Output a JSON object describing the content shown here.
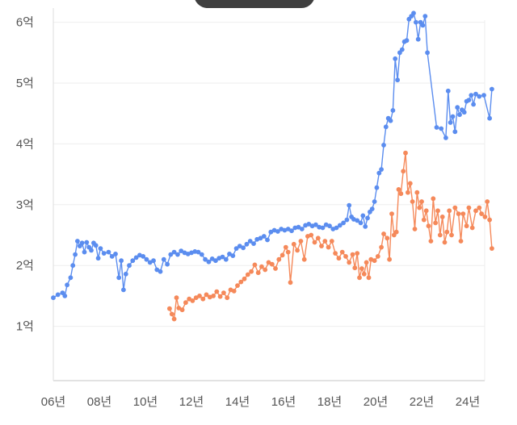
{
  "chart_data": {
    "type": "line",
    "title": "",
    "xlabel": "",
    "ylabel": "",
    "x_unit": "year",
    "xlim": [
      2006,
      2025.4
    ],
    "ylim": [
      0,
      6.3
    ],
    "y_ticks": [
      {
        "value": 1,
        "label": "1억"
      },
      {
        "value": 2,
        "label": "2억"
      },
      {
        "value": 3,
        "label": "3억"
      },
      {
        "value": 4,
        "label": "4억"
      },
      {
        "value": 5,
        "label": "5억"
      },
      {
        "value": 6,
        "label": "6억"
      }
    ],
    "x_ticks": [
      {
        "value": 2006,
        "label": "06년"
      },
      {
        "value": 2008,
        "label": "08년"
      },
      {
        "value": 2010,
        "label": "10년"
      },
      {
        "value": 2012,
        "label": "12년"
      },
      {
        "value": 2014,
        "label": "14년"
      },
      {
        "value": 2016,
        "label": "16년"
      },
      {
        "value": 2018,
        "label": "18년"
      },
      {
        "value": 2020,
        "label": "20년"
      },
      {
        "value": 2022,
        "label": "22년"
      },
      {
        "value": 2024,
        "label": "24년"
      }
    ],
    "grid": true,
    "legend": "none",
    "series": [
      {
        "color": "#5b8def",
        "points": [
          [
            2006.0,
            1.47
          ],
          [
            2006.2,
            1.52
          ],
          [
            2006.4,
            1.55
          ],
          [
            2006.5,
            1.5
          ],
          [
            2006.6,
            1.68
          ],
          [
            2006.75,
            1.8
          ],
          [
            2006.85,
            2.0
          ],
          [
            2006.95,
            2.18
          ],
          [
            2007.05,
            2.4
          ],
          [
            2007.15,
            2.32
          ],
          [
            2007.25,
            2.37
          ],
          [
            2007.35,
            2.22
          ],
          [
            2007.45,
            2.38
          ],
          [
            2007.55,
            2.3
          ],
          [
            2007.65,
            2.25
          ],
          [
            2007.75,
            2.37
          ],
          [
            2007.85,
            2.33
          ],
          [
            2007.95,
            2.12
          ],
          [
            2008.05,
            2.28
          ],
          [
            2008.2,
            2.2
          ],
          [
            2008.4,
            2.22
          ],
          [
            2008.55,
            2.15
          ],
          [
            2008.7,
            2.19
          ],
          [
            2008.85,
            1.8
          ],
          [
            2008.95,
            2.08
          ],
          [
            2009.05,
            1.6
          ],
          [
            2009.15,
            1.86
          ],
          [
            2009.3,
            2.0
          ],
          [
            2009.45,
            2.08
          ],
          [
            2009.6,
            2.13
          ],
          [
            2009.75,
            2.17
          ],
          [
            2009.9,
            2.15
          ],
          [
            2010.05,
            2.1
          ],
          [
            2010.2,
            2.05
          ],
          [
            2010.35,
            2.08
          ],
          [
            2010.5,
            1.93
          ],
          [
            2010.65,
            1.9
          ],
          [
            2010.8,
            2.1
          ],
          [
            2010.95,
            2.02
          ],
          [
            2011.1,
            2.18
          ],
          [
            2011.25,
            2.22
          ],
          [
            2011.4,
            2.18
          ],
          [
            2011.55,
            2.24
          ],
          [
            2011.7,
            2.21
          ],
          [
            2011.85,
            2.19
          ],
          [
            2012.0,
            2.21
          ],
          [
            2012.15,
            2.23
          ],
          [
            2012.3,
            2.22
          ],
          [
            2012.45,
            2.18
          ],
          [
            2012.6,
            2.1
          ],
          [
            2012.75,
            2.06
          ],
          [
            2012.9,
            2.11
          ],
          [
            2013.05,
            2.08
          ],
          [
            2013.2,
            2.12
          ],
          [
            2013.35,
            2.14
          ],
          [
            2013.5,
            2.1
          ],
          [
            2013.65,
            2.19
          ],
          [
            2013.8,
            2.16
          ],
          [
            2013.95,
            2.28
          ],
          [
            2014.1,
            2.32
          ],
          [
            2014.25,
            2.29
          ],
          [
            2014.4,
            2.35
          ],
          [
            2014.55,
            2.4
          ],
          [
            2014.7,
            2.36
          ],
          [
            2014.85,
            2.43
          ],
          [
            2015.0,
            2.45
          ],
          [
            2015.15,
            2.48
          ],
          [
            2015.3,
            2.42
          ],
          [
            2015.45,
            2.55
          ],
          [
            2015.6,
            2.58
          ],
          [
            2015.75,
            2.56
          ],
          [
            2015.9,
            2.6
          ],
          [
            2016.05,
            2.58
          ],
          [
            2016.2,
            2.6
          ],
          [
            2016.35,
            2.57
          ],
          [
            2016.5,
            2.62
          ],
          [
            2016.65,
            2.63
          ],
          [
            2016.8,
            2.6
          ],
          [
            2016.95,
            2.66
          ],
          [
            2017.1,
            2.68
          ],
          [
            2017.25,
            2.65
          ],
          [
            2017.4,
            2.67
          ],
          [
            2017.55,
            2.63
          ],
          [
            2017.7,
            2.62
          ],
          [
            2017.85,
            2.67
          ],
          [
            2018.0,
            2.65
          ],
          [
            2018.15,
            2.6
          ],
          [
            2018.3,
            2.62
          ],
          [
            2018.45,
            2.66
          ],
          [
            2018.6,
            2.7
          ],
          [
            2018.75,
            2.75
          ],
          [
            2018.85,
            2.99
          ],
          [
            2018.95,
            2.8
          ],
          [
            2019.05,
            2.76
          ],
          [
            2019.2,
            2.74
          ],
          [
            2019.35,
            2.7
          ],
          [
            2019.45,
            2.82
          ],
          [
            2019.55,
            2.64
          ],
          [
            2019.65,
            2.78
          ],
          [
            2019.75,
            2.88
          ],
          [
            2019.85,
            2.93
          ],
          [
            2019.95,
            3.05
          ],
          [
            2020.05,
            3.28
          ],
          [
            2020.15,
            3.52
          ],
          [
            2020.25,
            3.58
          ],
          [
            2020.35,
            3.98
          ],
          [
            2020.45,
            4.28
          ],
          [
            2020.55,
            4.42
          ],
          [
            2020.65,
            4.38
          ],
          [
            2020.75,
            4.55
          ],
          [
            2020.85,
            5.4
          ],
          [
            2020.95,
            5.05
          ],
          [
            2021.05,
            5.5
          ],
          [
            2021.15,
            5.55
          ],
          [
            2021.25,
            5.68
          ],
          [
            2021.35,
            5.7
          ],
          [
            2021.45,
            6.05
          ],
          [
            2021.55,
            6.1
          ],
          [
            2021.65,
            6.15
          ],
          [
            2021.75,
            6.0
          ],
          [
            2021.85,
            5.72
          ],
          [
            2021.95,
            6.0
          ],
          [
            2022.05,
            5.95
          ],
          [
            2022.15,
            6.1
          ],
          [
            2022.25,
            5.5
          ],
          [
            2022.65,
            4.27
          ],
          [
            2022.85,
            4.25
          ],
          [
            2023.05,
            4.1
          ],
          [
            2023.15,
            4.87
          ],
          [
            2023.25,
            4.35
          ],
          [
            2023.35,
            4.45
          ],
          [
            2023.45,
            4.2
          ],
          [
            2023.55,
            4.6
          ],
          [
            2023.65,
            4.48
          ],
          [
            2023.75,
            4.56
          ],
          [
            2023.85,
            4.52
          ],
          [
            2023.95,
            4.7
          ],
          [
            2024.05,
            4.72
          ],
          [
            2024.15,
            4.8
          ],
          [
            2024.25,
            4.65
          ],
          [
            2024.35,
            4.82
          ],
          [
            2024.5,
            4.78
          ],
          [
            2024.7,
            4.8
          ],
          [
            2024.95,
            4.42
          ],
          [
            2025.05,
            4.9
          ]
        ]
      },
      {
        "color": "#f5895a",
        "points": [
          [
            2011.05,
            1.29
          ],
          [
            2011.15,
            1.2
          ],
          [
            2011.25,
            1.12
          ],
          [
            2011.35,
            1.47
          ],
          [
            2011.45,
            1.3
          ],
          [
            2011.6,
            1.27
          ],
          [
            2011.75,
            1.39
          ],
          [
            2011.9,
            1.45
          ],
          [
            2012.05,
            1.42
          ],
          [
            2012.2,
            1.47
          ],
          [
            2012.35,
            1.5
          ],
          [
            2012.5,
            1.45
          ],
          [
            2012.65,
            1.52
          ],
          [
            2012.8,
            1.48
          ],
          [
            2012.95,
            1.5
          ],
          [
            2013.1,
            1.57
          ],
          [
            2013.25,
            1.49
          ],
          [
            2013.4,
            1.55
          ],
          [
            2013.55,
            1.47
          ],
          [
            2013.7,
            1.6
          ],
          [
            2013.85,
            1.58
          ],
          [
            2014.0,
            1.67
          ],
          [
            2014.15,
            1.73
          ],
          [
            2014.3,
            1.78
          ],
          [
            2014.45,
            1.85
          ],
          [
            2014.6,
            1.9
          ],
          [
            2014.75,
            2.01
          ],
          [
            2014.9,
            1.88
          ],
          [
            2015.05,
            1.98
          ],
          [
            2015.2,
            1.93
          ],
          [
            2015.35,
            2.05
          ],
          [
            2015.5,
            2.02
          ],
          [
            2015.65,
            1.95
          ],
          [
            2015.8,
            2.1
          ],
          [
            2015.95,
            2.17
          ],
          [
            2016.1,
            2.3
          ],
          [
            2016.2,
            2.22
          ],
          [
            2016.3,
            1.72
          ],
          [
            2016.45,
            2.35
          ],
          [
            2016.6,
            2.25
          ],
          [
            2016.75,
            2.4
          ],
          [
            2016.9,
            2.1
          ],
          [
            2017.05,
            2.48
          ],
          [
            2017.2,
            2.5
          ],
          [
            2017.35,
            2.38
          ],
          [
            2017.5,
            2.45
          ],
          [
            2017.65,
            2.32
          ],
          [
            2017.8,
            2.4
          ],
          [
            2017.95,
            2.3
          ],
          [
            2018.1,
            2.4
          ],
          [
            2018.25,
            2.2
          ],
          [
            2018.4,
            2.12
          ],
          [
            2018.55,
            2.22
          ],
          [
            2018.7,
            2.15
          ],
          [
            2018.85,
            2.05
          ],
          [
            2019.0,
            2.18
          ],
          [
            2019.1,
            1.96
          ],
          [
            2019.2,
            2.2
          ],
          [
            2019.3,
            1.8
          ],
          [
            2019.4,
            1.95
          ],
          [
            2019.5,
            1.86
          ],
          [
            2019.6,
            2.05
          ],
          [
            2019.7,
            1.8
          ],
          [
            2019.8,
            2.1
          ],
          [
            2019.95,
            2.08
          ],
          [
            2020.1,
            2.15
          ],
          [
            2020.25,
            2.3
          ],
          [
            2020.35,
            2.52
          ],
          [
            2020.5,
            2.45
          ],
          [
            2020.6,
            2.1
          ],
          [
            2020.7,
            2.85
          ],
          [
            2020.8,
            2.5
          ],
          [
            2020.9,
            2.55
          ],
          [
            2021.0,
            3.25
          ],
          [
            2021.1,
            3.18
          ],
          [
            2021.2,
            3.55
          ],
          [
            2021.3,
            3.85
          ],
          [
            2021.4,
            3.2
          ],
          [
            2021.5,
            3.35
          ],
          [
            2021.6,
            3.05
          ],
          [
            2021.7,
            2.6
          ],
          [
            2021.8,
            3.2
          ],
          [
            2021.9,
            2.95
          ],
          [
            2022.0,
            3.05
          ],
          [
            2022.1,
            2.75
          ],
          [
            2022.2,
            2.9
          ],
          [
            2022.3,
            2.65
          ],
          [
            2022.4,
            2.4
          ],
          [
            2022.5,
            3.1
          ],
          [
            2022.6,
            2.7
          ],
          [
            2022.7,
            2.9
          ],
          [
            2022.8,
            2.5
          ],
          [
            2022.9,
            2.8
          ],
          [
            2023.0,
            2.38
          ],
          [
            2023.1,
            2.55
          ],
          [
            2023.2,
            2.9
          ],
          [
            2023.3,
            2.5
          ],
          [
            2023.45,
            2.95
          ],
          [
            2023.6,
            2.85
          ],
          [
            2023.7,
            2.4
          ],
          [
            2023.8,
            2.85
          ],
          [
            2023.95,
            2.65
          ],
          [
            2024.05,
            2.95
          ],
          [
            2024.2,
            2.62
          ],
          [
            2024.35,
            2.9
          ],
          [
            2024.5,
            2.95
          ],
          [
            2024.6,
            2.85
          ],
          [
            2024.75,
            2.8
          ],
          [
            2024.85,
            3.05
          ],
          [
            2024.95,
            2.75
          ],
          [
            2025.05,
            2.28
          ]
        ]
      }
    ]
  }
}
